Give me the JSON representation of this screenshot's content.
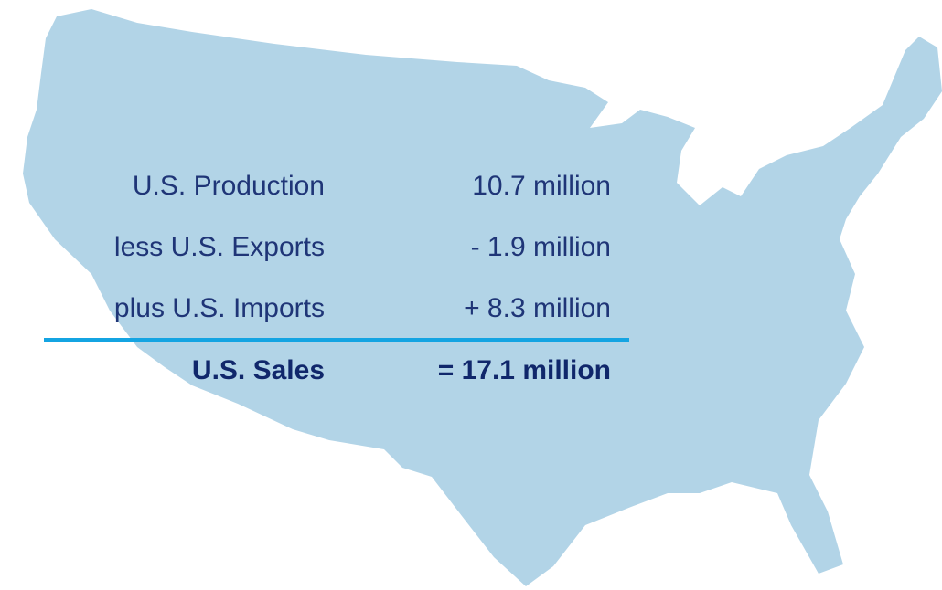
{
  "rows": [
    {
      "label": "U.S. Production",
      "value": "10.7 million"
    },
    {
      "label": "less U.S. Exports",
      "value": "- 1.9 million"
    },
    {
      "label": "plus U.S. Imports",
      "value": "+ 8.3 million"
    }
  ],
  "total": {
    "label": "U.S. Sales",
    "value": "= 17.1 million"
  }
}
